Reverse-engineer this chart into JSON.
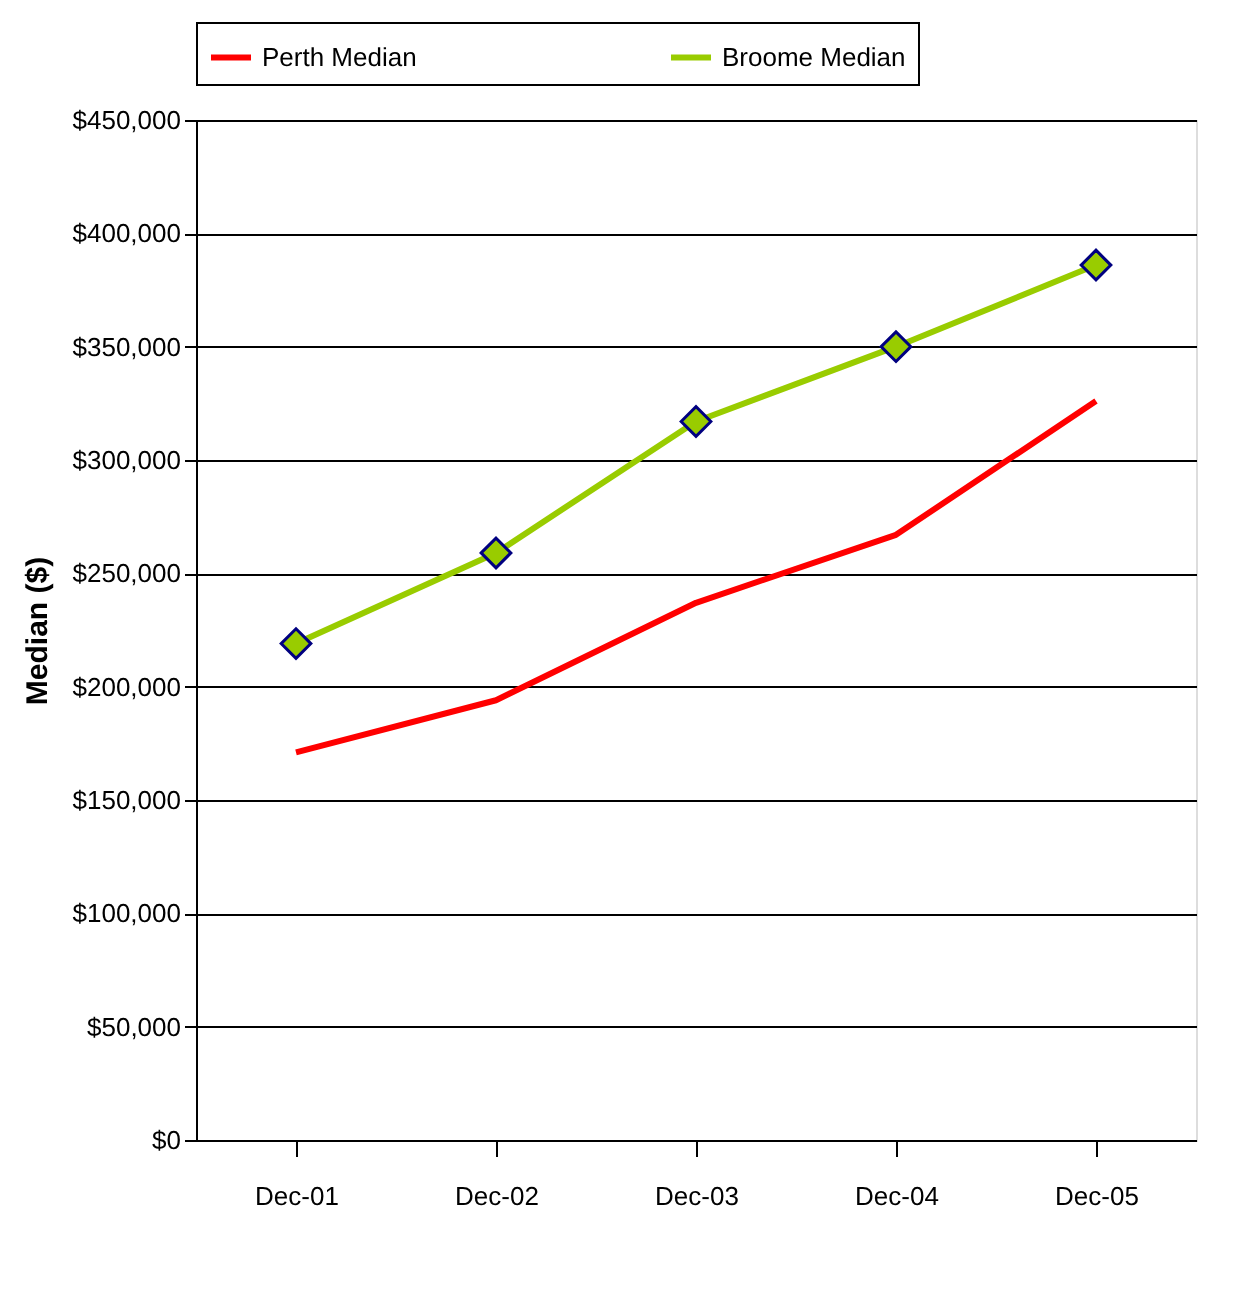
{
  "chart_data": {
    "type": "line",
    "ylabel": "Median ($)",
    "categories": [
      "Dec-01",
      "Dec-02",
      "Dec-03",
      "Dec-04",
      "Dec-05"
    ],
    "series": [
      {
        "name": "Perth Median",
        "color": "#ff0000",
        "marker": "none",
        "values": [
          171000,
          194000,
          237000,
          267000,
          326000
        ]
      },
      {
        "name": "Broome Median",
        "color": "#99cc00",
        "marker": "diamond",
        "values": [
          219000,
          259000,
          317000,
          350000,
          386000
        ]
      }
    ],
    "ylim": [
      0,
      450000
    ],
    "yticks": [
      {
        "value": 0,
        "label": "$0"
      },
      {
        "value": 50000,
        "label": "$50,000"
      },
      {
        "value": 100000,
        "label": "$100,000"
      },
      {
        "value": 150000,
        "label": "$150,000"
      },
      {
        "value": 200000,
        "label": "$200,000"
      },
      {
        "value": 250000,
        "label": "$250,000"
      },
      {
        "value": 300000,
        "label": "$300,000"
      },
      {
        "value": 350000,
        "label": "$350,000"
      },
      {
        "value": 400000,
        "label": "$400,000"
      },
      {
        "value": 450000,
        "label": "$450,000"
      }
    ],
    "grid": "y",
    "legend": "top",
    "line_style": "solid"
  }
}
